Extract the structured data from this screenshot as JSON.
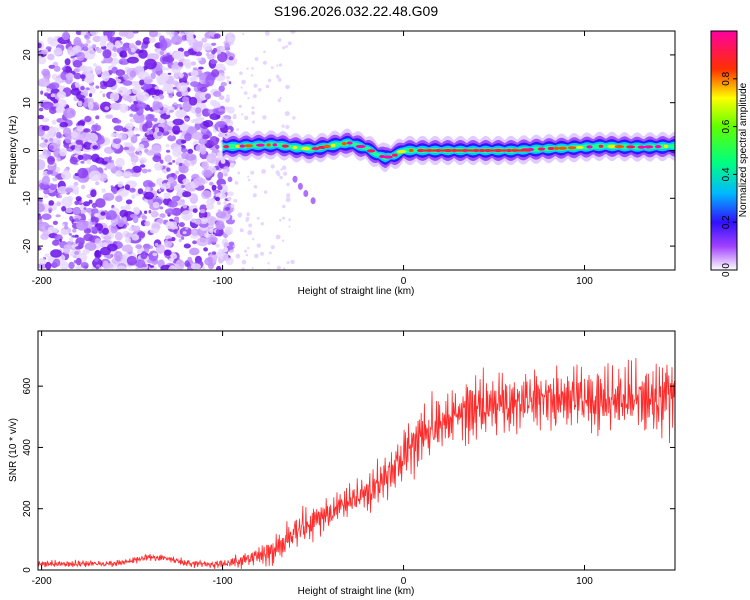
{
  "title": "S196.2026.032.22.48.G09",
  "chart_data": [
    {
      "type": "heatmap",
      "title": "S196.2026.032.22.48.G09",
      "xlabel": "Height of straight line (km)",
      "ylabel": "Frequency (Hz)",
      "xlim": [
        -202,
        150
      ],
      "ylim": [
        -25,
        25
      ],
      "xticks": [
        "-200",
        "-100",
        "0",
        "100"
      ],
      "yticks": [
        "20",
        "10",
        "0",
        "-10",
        "-20"
      ],
      "colorbar": {
        "label": "Normalized spectral amplitude",
        "range": [
          0.0,
          1.0
        ],
        "ticks": [
          "0.0",
          "0.2",
          "0.4",
          "0.6",
          "0.8"
        ],
        "colormap": "rainbow (white-purple-blue-cyan-green-yellow-red-magenta)"
      },
      "noise_region": {
        "height_km": [
          -202,
          -95
        ],
        "frequency_hz": [
          -25,
          25
        ]
      },
      "main_signal": {
        "height_km": [
          -100,
          -90,
          -80,
          -70,
          -60,
          -50,
          -40,
          -30,
          -20,
          -15,
          -10,
          -5,
          0,
          10,
          20,
          30,
          40,
          50,
          60,
          70,
          80,
          90,
          100,
          110,
          120,
          130,
          140,
          150
        ],
        "frequency_hz": [
          0.8,
          0.9,
          1.1,
          1.2,
          0.6,
          0.3,
          1.0,
          1.6,
          0.4,
          -0.8,
          -1.5,
          -1.0,
          0.0,
          0.0,
          0.0,
          0.0,
          0.0,
          0.0,
          0.0,
          0.2,
          0.4,
          0.5,
          0.7,
          0.9,
          0.8,
          0.7,
          0.8,
          0.9
        ]
      },
      "faint_trace": {
        "height_km": [
          -60,
          -57,
          -54,
          -50
        ],
        "frequency_hz": [
          -6,
          -7.5,
          -9,
          -10.5
        ]
      }
    },
    {
      "type": "line",
      "title": "",
      "xlabel": "Height of straight line (km)",
      "ylabel": "SNR (10 * v/v)",
      "xlim": [
        -202,
        150
      ],
      "ylim": [
        0,
        780
      ],
      "xticks": [
        "-200",
        "-100",
        "0",
        "100"
      ],
      "yticks": [
        "0",
        "200",
        "400",
        "600"
      ],
      "series": [
        {
          "name": "SNR",
          "color": "#ff2a2a",
          "x": [
            -202,
            -180,
            -160,
            -150,
            -140,
            -130,
            -120,
            -110,
            -100,
            -90,
            -80,
            -70,
            -60,
            -50,
            -40,
            -30,
            -20,
            -10,
            0,
            10,
            20,
            30,
            40,
            50,
            60,
            70,
            80,
            90,
            100,
            110,
            120,
            130,
            140,
            150
          ],
          "mean": [
            20,
            20,
            22,
            30,
            42,
            38,
            22,
            20,
            20,
            30,
            45,
            70,
            120,
            160,
            190,
            220,
            250,
            300,
            360,
            430,
            480,
            510,
            530,
            540,
            550,
            555,
            560,
            560,
            560,
            560,
            560,
            565,
            560,
            555
          ],
          "amplitude": [
            12,
            12,
            12,
            12,
            12,
            12,
            12,
            12,
            15,
            25,
            35,
            55,
            60,
            60,
            60,
            60,
            70,
            80,
            90,
            100,
            110,
            110,
            110,
            110,
            110,
            110,
            110,
            115,
            120,
            120,
            120,
            125,
            125,
            120
          ]
        }
      ]
    }
  ]
}
